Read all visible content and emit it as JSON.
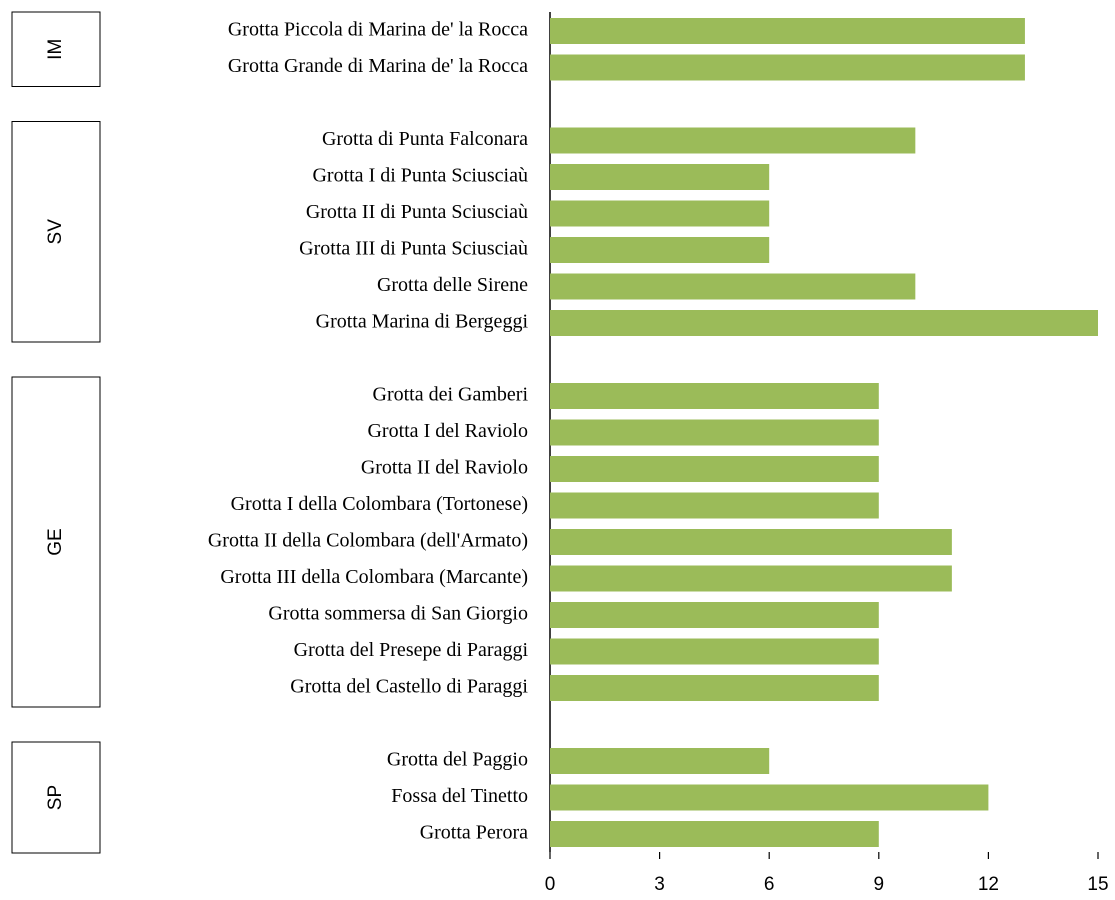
{
  "chart_data": {
    "type": "bar",
    "orientation": "horizontal",
    "categories": [
      "Grotta Piccola di Marina de' la Rocca",
      "Grotta Grande di Marina de' la Rocca",
      null,
      "Grotta di Punta Falconara",
      "Grotta I di Punta Sciusciaù",
      "Grotta II di Punta Sciusciaù",
      "Grotta III di Punta Sciusciaù",
      "Grotta delle Sirene",
      "Grotta Marina di Bergeggi",
      null,
      "Grotta dei Gamberi",
      "Grotta I del Raviolo",
      "Grotta II del Raviolo",
      "Grotta I della Colombara (Tortonese)",
      "Grotta II della Colombara (dell'Armato)",
      "Grotta III della Colombara (Marcante)",
      "Grotta sommersa di San Giorgio",
      "Grotta del Presepe di Paraggi",
      "Grotta del Castello di Paraggi",
      null,
      "Grotta del Paggio",
      "Fossa del Tinetto",
      "Grotta Perora"
    ],
    "values": [
      13,
      13,
      null,
      10,
      6,
      6,
      6,
      10,
      15,
      null,
      9,
      9,
      9,
      9,
      11,
      11,
      9,
      9,
      9,
      null,
      6,
      12,
      9
    ],
    "groups": [
      "IM",
      "SV",
      "GE",
      "SP"
    ],
    "color": "#9bbb59",
    "xlim": [
      0,
      15
    ],
    "xticks": [
      0,
      3,
      6,
      9,
      12,
      15
    ]
  }
}
